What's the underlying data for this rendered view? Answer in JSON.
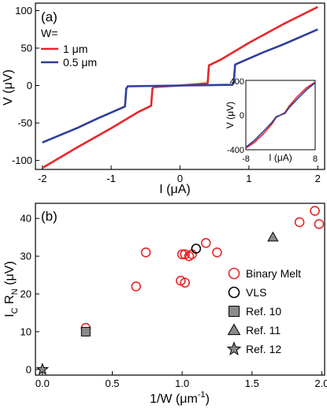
{
  "chart_data": [
    {
      "panel_label": "(a)",
      "type": "line",
      "xlabel": "I (μA)",
      "ylabel": "V (μV)",
      "xlim": [
        -2.1,
        2.1
      ],
      "ylim": [
        -112,
        110
      ],
      "xticks": [
        -2,
        -1,
        0,
        1,
        2
      ],
      "xtick_labels": [
        "-2",
        "-1",
        "0",
        "1",
        "2"
      ],
      "yticks": [
        -100,
        -50,
        0,
        50,
        100
      ],
      "ytick_labels": [
        "-100",
        "-50",
        "0",
        "50",
        "100"
      ],
      "legend_title": "W=",
      "legend_position": "top-left",
      "series": [
        {
          "name": "1 μm",
          "color": "#e8262b",
          "x": [
            -2.0,
            -1.5,
            -1.0,
            -0.6,
            -0.42,
            -0.4,
            -0.38,
            0.0,
            0.4,
            0.42,
            0.6,
            1.0,
            1.5,
            2.0
          ],
          "y": [
            -110,
            -83,
            -57,
            -35,
            -27,
            -4,
            -2,
            0,
            3,
            27,
            35,
            57,
            82,
            105
          ]
        },
        {
          "name": "0.5 μm",
          "color": "#2f3f9b",
          "x": [
            -2.0,
            -1.5,
            -1.2,
            -1.0,
            -0.8,
            -0.78,
            -0.76,
            0.0,
            0.76,
            0.78,
            0.8,
            1.0,
            1.2,
            1.5,
            2.0
          ],
          "y": [
            -76,
            -57,
            -44,
            -36,
            -28,
            -4,
            -1,
            0,
            1,
            4,
            28,
            36,
            44,
            55,
            75
          ]
        }
      ],
      "inset": {
        "xlabel": "I (μA)",
        "ylabel": "V (μV)",
        "xlim": [
          -8,
          8
        ],
        "ylim": [
          -420,
          420
        ],
        "xtick_labels": [
          "-8",
          "0",
          "8"
        ],
        "ytick_labels": [
          "400",
          "0",
          "-400"
        ],
        "series": [
          {
            "color": "#e8262b",
            "x": [
              -8,
              -6,
              -4,
              -2,
              -1,
              0,
              1,
              2,
              4,
              6,
              8
            ],
            "y": [
              -400,
              -330,
              -230,
              -110,
              -30,
              0,
              30,
              110,
              230,
              330,
              400
            ]
          },
          {
            "color": "#2f3f9b",
            "x": [
              -8,
              -6,
              -4,
              -2,
              -1,
              0,
              1,
              2,
              4,
              6,
              8
            ],
            "y": [
              -390,
              -305,
              -200,
              -90,
              -20,
              0,
              20,
              90,
              200,
              305,
              390
            ]
          }
        ]
      }
    },
    {
      "panel_label": "(b)",
      "type": "scatter",
      "xlabel": "1/W (μm⁻¹)",
      "ylabel": "I_C R_N (μV)",
      "xlim": [
        -0.05,
        2.02
      ],
      "ylim": [
        -1.5,
        44
      ],
      "xticks": [
        0.0,
        0.5,
        1.0,
        1.5,
        2.0
      ],
      "xtick_labels": [
        "0.0",
        "0.5",
        "1.0",
        "1.5",
        "2.0"
      ],
      "yticks": [
        0,
        10,
        20,
        30,
        40
      ],
      "ytick_labels": [
        "0",
        "10",
        "20",
        "30",
        "40"
      ],
      "legend_position": "right",
      "series": [
        {
          "name": "Binary Melt",
          "marker": "circle-open",
          "color": "#e8262b",
          "x": [
            0.31,
            0.67,
            0.74,
            0.99,
            1.0,
            1.02,
            1.02,
            1.05,
            1.07,
            1.17,
            1.25,
            1.84,
            1.95,
            1.98
          ],
          "y": [
            11,
            22,
            31,
            23.5,
            30.5,
            23,
            30.5,
            30,
            30.5,
            33.5,
            31,
            39,
            42,
            38.5
          ]
        },
        {
          "name": "VLS",
          "marker": "circle-open",
          "color": "#000000",
          "x": [
            1.1
          ],
          "y": [
            32
          ]
        },
        {
          "name": "Ref. 10",
          "marker": "square",
          "color": "#8a8a8a",
          "x": [
            0.31
          ],
          "y": [
            10
          ]
        },
        {
          "name": "Ref. 11",
          "marker": "triangle",
          "color": "#8a8a8a",
          "x": [
            1.65
          ],
          "y": [
            35
          ]
        },
        {
          "name": "Ref. 12",
          "marker": "star",
          "color": "#8a8a8a",
          "x": [
            0.0
          ],
          "y": [
            0
          ]
        }
      ]
    }
  ]
}
